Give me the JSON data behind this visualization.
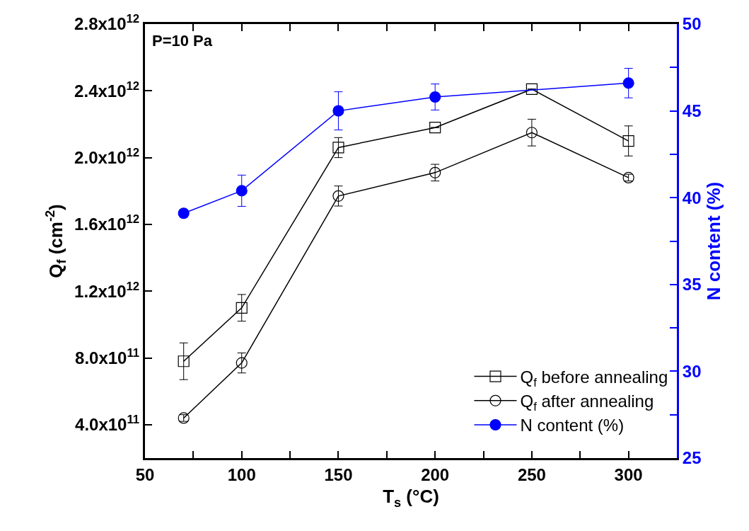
{
  "chart_data": {
    "type": "line",
    "xlabel": "T$_{s}$ (°C)",
    "ylabel": "Q$_{f}$ (cm$^{-2}$)",
    "y2label": "N content (%)",
    "annotations": [
      "P=10 Pa"
    ],
    "xlim": [
      50,
      325
    ],
    "xticks": [
      50,
      {
        "value": 75,
        "label": null
      },
      100,
      {
        "value": 125,
        "label": null
      },
      150,
      {
        "value": 175,
        "label": null
      },
      200,
      {
        "value": 225,
        "label": null
      },
      250,
      {
        "value": 275,
        "label": null
      },
      300
    ],
    "ylim": [
      200000000000,
      2800000000000
    ],
    "yticks": [
      {
        "value": 400000000000,
        "label": "4.0x10$^{11}$"
      },
      {
        "value": 800000000000,
        "label": "8.0x10$^{11}$"
      },
      {
        "value": 1200000000000,
        "label": "1.2x10$^{12}$"
      },
      {
        "value": 1600000000000,
        "label": "1.6x10$^{12}$"
      },
      {
        "value": 2000000000000,
        "label": "2.0x10$^{12}$"
      },
      {
        "value": 2400000000000,
        "label": "2.4x10$^{12}$"
      },
      {
        "value": 2800000000000,
        "label": "2.8x10$^{12}$"
      }
    ],
    "y2lim": [
      25,
      50
    ],
    "y2ticks": [
      25,
      {
        "value": 27.5,
        "label": null
      },
      30,
      {
        "value": 32.5,
        "label": null
      },
      35,
      {
        "value": 37.5,
        "label": null
      },
      40,
      {
        "value": 42.5,
        "label": null
      },
      45,
      {
        "value": 47.5,
        "label": null
      },
      50
    ],
    "x": [
      70,
      100,
      150,
      200,
      250,
      300
    ],
    "series": [
      {
        "name": "Q$_{f}$ before annealing",
        "color": "#000000",
        "marker": "square",
        "values": [
          780000000000,
          1100000000000,
          2060000000000,
          2180000000000,
          2410000000000,
          2100000000000
        ],
        "errors": [
          110000000000,
          80000000000,
          60000000000,
          null,
          null,
          90000000000
        ]
      },
      {
        "name": "Q$_{f}$ after annealing",
        "color": "#000000",
        "marker": "circle",
        "values": [
          440000000000,
          770000000000,
          1770000000000,
          1910000000000,
          2150000000000,
          1880000000000
        ],
        "errors": [
          20000000000,
          60000000000,
          60000000000,
          50000000000,
          80000000000,
          20000000000
        ]
      },
      {
        "name": "N content (%)",
        "color": "#0000ff",
        "marker": "circle",
        "axis": "y2",
        "x": [
          70,
          100,
          150,
          200,
          300
        ],
        "values": [
          39.1,
          40.4,
          45.0,
          45.8,
          46.6
        ],
        "errors": [
          null,
          0.9,
          1.1,
          0.75,
          0.85
        ]
      }
    ],
    "grid": false,
    "legend": "bottom right"
  }
}
